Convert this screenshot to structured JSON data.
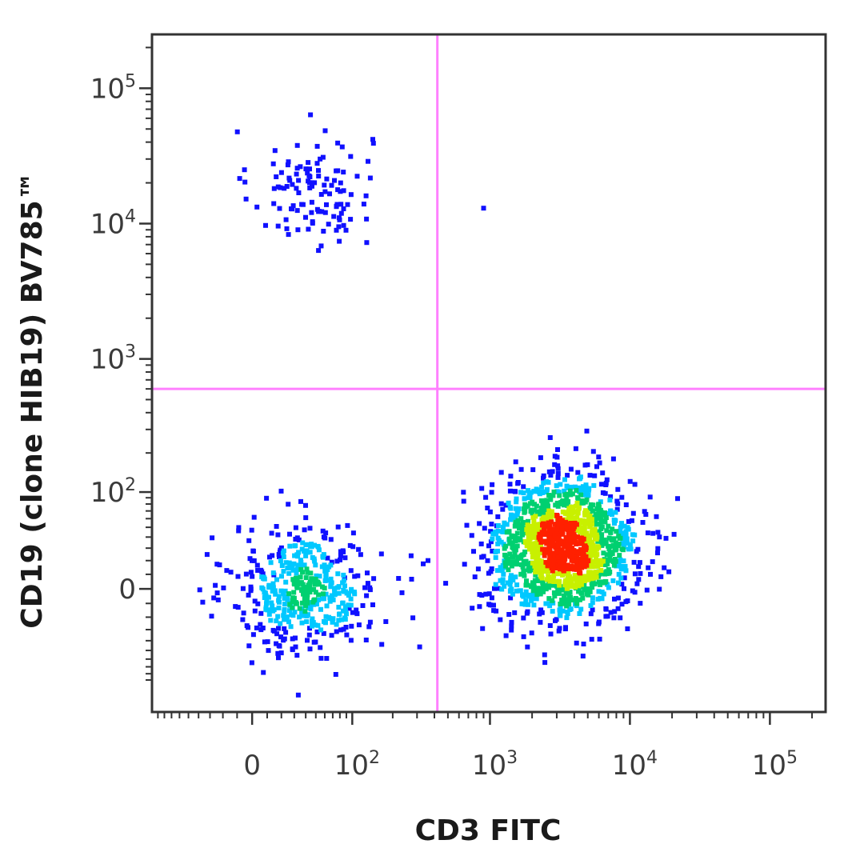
{
  "chart_data": {
    "type": "scatter",
    "plot_style": "flow cytometry pseudocolor dot plot (density colored: blue low, cyan, green, yellow, red high)",
    "xlabel": "CD3 FITC",
    "ylabel": "CD19 (clone HIB19) BV785™",
    "x_scale": "biexponential",
    "y_scale": "biexponential",
    "xlim": [
      -100,
      250000
    ],
    "ylim": [
      -160,
      250000
    ],
    "x_ticks": [
      {
        "base": "0",
        "exp": ""
      },
      {
        "base": "10",
        "exp": "2"
      },
      {
        "base": "10",
        "exp": "3"
      },
      {
        "base": "10",
        "exp": "4"
      },
      {
        "base": "10",
        "exp": "5"
      }
    ],
    "y_ticks": [
      {
        "base": "0",
        "exp": ""
      },
      {
        "base": "10",
        "exp": "2"
      },
      {
        "base": "10",
        "exp": "3"
      },
      {
        "base": "10",
        "exp": "4"
      },
      {
        "base": "10",
        "exp": "5"
      }
    ],
    "quadrant_gate": {
      "x": 420,
      "y": 600,
      "color": "#ff80ff"
    },
    "density_colors": [
      "#1010ff",
      "#00c8ff",
      "#00d070",
      "#c8f000",
      "#ff2000"
    ],
    "populations": [
      {
        "x_center": 45,
        "y_center": 18000,
        "x_spread": 0.5,
        "y_spread": 0.5,
        "n": 120
      },
      {
        "x_center": 40,
        "y_center": 0,
        "x_spread": 0.6,
        "y_spread": 0.55,
        "n": 480
      },
      {
        "x_center": 3300,
        "y_center": 30,
        "x_spread": 0.6,
        "y_spread": 0.6,
        "n": 1500
      }
    ],
    "outliers": [
      {
        "x": 900,
        "y": 13000
      },
      {
        "x": 360,
        "y": 20
      },
      {
        "x": 14000,
        "y": 10
      }
    ]
  }
}
